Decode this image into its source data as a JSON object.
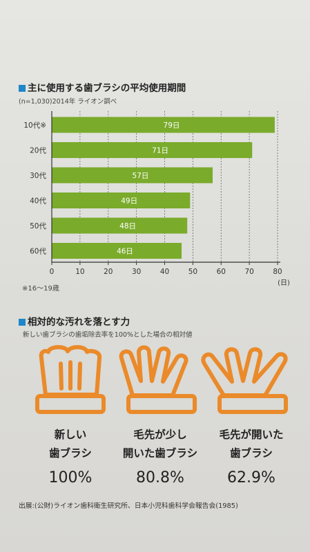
{
  "section1": {
    "title": "主に使用する歯ブラシの平均使用期間",
    "subtitle": "(n=1,030)2014年 ライオン調べ",
    "footnote": "※16〜19歳"
  },
  "chart_data": {
    "type": "bar",
    "orientation": "horizontal",
    "categories": [
      "10代※",
      "20代",
      "30代",
      "40代",
      "50代",
      "60代"
    ],
    "values": [
      79,
      71,
      57,
      49,
      48,
      46
    ],
    "value_labels": [
      "79日",
      "71日",
      "57日",
      "49日",
      "48日",
      "46日"
    ],
    "xlim": [
      0,
      80
    ],
    "xticks": [
      "0",
      "10",
      "20",
      "30",
      "40",
      "50",
      "60",
      "70",
      "80"
    ],
    "xunit": "(日)",
    "grid": "vertical dashed",
    "bar_color": "#7aab2b"
  },
  "section2": {
    "title": "相対的な汚れを落とす力",
    "subtitle": "新しい歯ブラシの歯垢除去率を100%とした場合の相対値",
    "brushes": [
      {
        "label_line1": "新しい",
        "label_line2": "歯ブラシ",
        "value": "100%"
      },
      {
        "label_line1": "毛先が少し",
        "label_line2": "開いた歯ブラシ",
        "value": "80.8%"
      },
      {
        "label_line1": "毛先が開いた",
        "label_line2": "歯ブラシ",
        "value": "62.9%"
      }
    ],
    "icon_color": "#ea8a2a"
  },
  "source": "出展:(公財)ライオン歯科衛生研究所、日本小児科歯科学会報告会(1985)"
}
